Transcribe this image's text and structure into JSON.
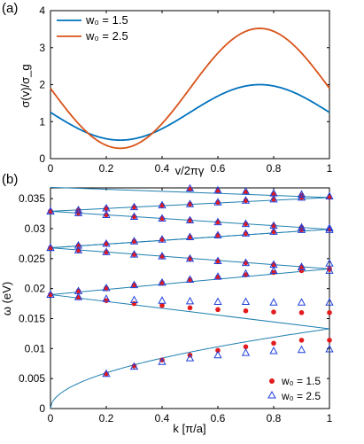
{
  "chart_data": [
    {
      "panel_label": "(a)",
      "type": "line",
      "xlabel": "v/2πγ",
      "ylabel": "σ(v)/σ_g",
      "xlim": [
        0,
        1
      ],
      "ylim": [
        0,
        4
      ],
      "xticks": [
        "0",
        "0.2",
        "0.4",
        "0.6",
        "0.8",
        "1"
      ],
      "yticks": [
        "0",
        "1",
        "2",
        "3",
        "4"
      ],
      "grid": false,
      "legend": "top-left",
      "series": [
        {
          "name": "w₀ = 1.5",
          "w0": 1.5,
          "color": "#0072BD",
          "mean": 1.25,
          "amplitude": 0.75,
          "x": [
            0,
            0.1,
            0.2,
            0.25,
            0.3,
            0.4,
            0.5,
            0.6,
            0.7,
            0.75,
            0.8,
            0.9,
            1.0
          ],
          "y": [
            1.25,
            0.81,
            0.54,
            0.5,
            0.54,
            0.81,
            1.25,
            1.69,
            1.96,
            2.0,
            1.96,
            1.69,
            1.25
          ]
        },
        {
          "name": "w₀ = 2.5",
          "w0": 2.5,
          "color": "#D95319",
          "mean": 1.9,
          "amplitude": 1.62,
          "x": [
            0,
            0.1,
            0.2,
            0.25,
            0.3,
            0.4,
            0.5,
            0.6,
            0.7,
            0.75,
            0.8,
            0.9,
            1.0
          ],
          "y": [
            1.9,
            0.95,
            0.36,
            0.28,
            0.36,
            0.95,
            1.9,
            2.85,
            3.44,
            3.52,
            3.44,
            2.85,
            1.9
          ]
        }
      ]
    },
    {
      "panel_label": "(b)",
      "type": "scatter",
      "xlabel": "k [π/a]",
      "ylabel": "ω (eV)",
      "xlim": [
        0,
        1
      ],
      "ylim": [
        0,
        0.0368
      ],
      "xticks": [
        "0",
        "0.2",
        "0.4",
        "0.6",
        "0.8",
        "1"
      ],
      "yticks": [
        "0",
        "0.005",
        "0.01",
        "0.015",
        "0.02",
        "0.025",
        "0.03",
        "0.035"
      ],
      "grid": false,
      "legend": "bottom-right",
      "bands": {
        "color": "#1f7fb0",
        "lines": [
          {
            "from": [
              0,
              0.019
            ],
            "to": [
              1,
              0.0133
            ]
          },
          {
            "from": [
              0,
              0.019
            ],
            "to": [
              1,
              0.0233
            ]
          },
          {
            "from": [
              0,
              0.0268
            ],
            "to": [
              1,
              0.0233
            ]
          },
          {
            "from": [
              0,
              0.0268
            ],
            "to": [
              1,
              0.0299
            ]
          },
          {
            "from": [
              0,
              0.0268
            ],
            "to": [
              1,
              0.0299
            ]
          },
          {
            "from": [
              0,
              0.0329
            ],
            "to": [
              1,
              0.0299
            ]
          },
          {
            "from": [
              0,
              0.0329
            ],
            "to": [
              1,
              0.0352
            ]
          },
          {
            "from": [
              0,
              0.0369
            ],
            "to": [
              1,
              0.0352
            ]
          }
        ],
        "sqrt_band": {
          "a": 0.0133,
          "to": 1
        }
      },
      "series": [
        {
          "name": "w₀ = 1.5",
          "marker": "filled-circle",
          "color": "#e41a1c",
          "points": [
            [
              0,
              0.019
            ],
            [
              0.1,
              0.0185
            ],
            [
              0.2,
              0.018
            ],
            [
              0.3,
              0.0175
            ],
            [
              0.4,
              0.0172
            ],
            [
              0.5,
              0.0168
            ],
            [
              0.6,
              0.0165
            ],
            [
              0.7,
              0.0163
            ],
            [
              0.8,
              0.0161
            ],
            [
              0.9,
              0.016
            ],
            [
              1.0,
              0.016
            ],
            [
              0.2,
              0.0058
            ],
            [
              0.3,
              0.0071
            ],
            [
              0.4,
              0.0081
            ],
            [
              0.5,
              0.0089
            ],
            [
              0.6,
              0.0097
            ],
            [
              0.7,
              0.0103
            ],
            [
              0.8,
              0.0109
            ],
            [
              0.9,
              0.0114
            ],
            [
              1.0,
              0.0114
            ],
            [
              0,
              0.019
            ],
            [
              0.1,
              0.0196
            ],
            [
              0.2,
              0.0201
            ],
            [
              0.3,
              0.0206
            ],
            [
              0.4,
              0.021
            ],
            [
              0.5,
              0.0215
            ],
            [
              0.6,
              0.0219
            ],
            [
              0.7,
              0.0223
            ],
            [
              0.8,
              0.0227
            ],
            [
              0.9,
              0.023
            ],
            [
              1.0,
              0.0232
            ],
            [
              0,
              0.0268
            ],
            [
              0.1,
              0.0264
            ],
            [
              0.2,
              0.0261
            ],
            [
              0.3,
              0.0257
            ],
            [
              0.4,
              0.0254
            ],
            [
              0.5,
              0.025
            ],
            [
              0.6,
              0.0246
            ],
            [
              0.7,
              0.0243
            ],
            [
              0.8,
              0.024
            ],
            [
              0.9,
              0.0236
            ],
            [
              1.0,
              0.0233
            ],
            [
              0,
              0.0268
            ],
            [
              0.1,
              0.0272
            ],
            [
              0.2,
              0.0275
            ],
            [
              0.3,
              0.0279
            ],
            [
              0.4,
              0.0282
            ],
            [
              0.5,
              0.0286
            ],
            [
              0.6,
              0.0289
            ],
            [
              0.7,
              0.0292
            ],
            [
              0.8,
              0.0295
            ],
            [
              0.9,
              0.0298
            ],
            [
              1.0,
              0.0299
            ],
            [
              0,
              0.0329
            ],
            [
              0.1,
              0.0326
            ],
            [
              0.2,
              0.0323
            ],
            [
              0.3,
              0.032
            ],
            [
              0.4,
              0.0317
            ],
            [
              0.5,
              0.0314
            ],
            [
              0.6,
              0.0311
            ],
            [
              0.7,
              0.0308
            ],
            [
              0.8,
              0.0305
            ],
            [
              0.9,
              0.0302
            ],
            [
              1.0,
              0.0299
            ],
            [
              0,
              0.0329
            ],
            [
              0.1,
              0.0331
            ],
            [
              0.2,
              0.0334
            ],
            [
              0.3,
              0.0336
            ],
            [
              0.4,
              0.0339
            ],
            [
              0.5,
              0.0341
            ],
            [
              0.6,
              0.0344
            ],
            [
              0.7,
              0.0347
            ],
            [
              0.8,
              0.0349
            ],
            [
              0.9,
              0.0352
            ],
            [
              1.0,
              0.0352
            ],
            [
              0.5,
              0.0366
            ],
            [
              0.6,
              0.0363
            ],
            [
              0.7,
              0.0361
            ],
            [
              0.8,
              0.0358
            ],
            [
              0.9,
              0.0356
            ]
          ]
        },
        {
          "name": "w₀ = 2.5",
          "marker": "open-triangle",
          "color": "#1f3fd9",
          "points": [
            [
              0,
              0.019
            ],
            [
              0.1,
              0.0186
            ],
            [
              0.2,
              0.0183
            ],
            [
              0.3,
              0.0181
            ],
            [
              0.4,
              0.018
            ],
            [
              0.5,
              0.0179
            ],
            [
              0.6,
              0.0178
            ],
            [
              0.7,
              0.0178
            ],
            [
              0.8,
              0.0177
            ],
            [
              0.9,
              0.0177
            ],
            [
              1.0,
              0.0177
            ],
            [
              0.2,
              0.0058
            ],
            [
              0.3,
              0.007
            ],
            [
              0.4,
              0.0078
            ],
            [
              0.5,
              0.0084
            ],
            [
              0.6,
              0.0089
            ],
            [
              0.7,
              0.0093
            ],
            [
              0.8,
              0.0096
            ],
            [
              0.9,
              0.0098
            ],
            [
              1.0,
              0.0099
            ],
            [
              0,
              0.019
            ],
            [
              0.1,
              0.0196
            ],
            [
              0.2,
              0.0201
            ],
            [
              0.3,
              0.0206
            ],
            [
              0.4,
              0.021
            ],
            [
              0.5,
              0.0215
            ],
            [
              0.6,
              0.022
            ],
            [
              0.7,
              0.0225
            ],
            [
              0.8,
              0.023
            ],
            [
              0.9,
              0.0236
            ],
            [
              1.0,
              0.0242
            ],
            [
              0,
              0.0268
            ],
            [
              0.1,
              0.0264
            ],
            [
              0.2,
              0.0261
            ],
            [
              0.3,
              0.0257
            ],
            [
              0.4,
              0.0254
            ],
            [
              0.5,
              0.025
            ],
            [
              0.6,
              0.0246
            ],
            [
              0.7,
              0.0243
            ],
            [
              0.8,
              0.024
            ],
            [
              0.9,
              0.0236
            ],
            [
              1.0,
              0.023
            ],
            [
              0,
              0.0268
            ],
            [
              0.1,
              0.0272
            ],
            [
              0.2,
              0.0275
            ],
            [
              0.3,
              0.0279
            ],
            [
              0.4,
              0.0282
            ],
            [
              0.5,
              0.0286
            ],
            [
              0.6,
              0.0289
            ],
            [
              0.7,
              0.0292
            ],
            [
              0.8,
              0.0295
            ],
            [
              0.9,
              0.0298
            ],
            [
              1.0,
              0.0301
            ],
            [
              0,
              0.0329
            ],
            [
              0.1,
              0.0326
            ],
            [
              0.2,
              0.0323
            ],
            [
              0.3,
              0.032
            ],
            [
              0.4,
              0.0317
            ],
            [
              0.5,
              0.0314
            ],
            [
              0.6,
              0.0311
            ],
            [
              0.7,
              0.0308
            ],
            [
              0.8,
              0.0305
            ],
            [
              0.9,
              0.0302
            ],
            [
              1.0,
              0.0298
            ],
            [
              0,
              0.0329
            ],
            [
              0.1,
              0.0331
            ],
            [
              0.2,
              0.0334
            ],
            [
              0.3,
              0.0336
            ],
            [
              0.4,
              0.0339
            ],
            [
              0.5,
              0.0341
            ],
            [
              0.6,
              0.0344
            ],
            [
              0.7,
              0.0347
            ],
            [
              0.8,
              0.0349
            ],
            [
              0.9,
              0.0352
            ],
            [
              1.0,
              0.0354
            ],
            [
              0.5,
              0.0367
            ],
            [
              0.6,
              0.0364
            ],
            [
              0.7,
              0.0362
            ],
            [
              0.8,
              0.0359
            ],
            [
              0.9,
              0.0357
            ]
          ]
        }
      ]
    }
  ]
}
